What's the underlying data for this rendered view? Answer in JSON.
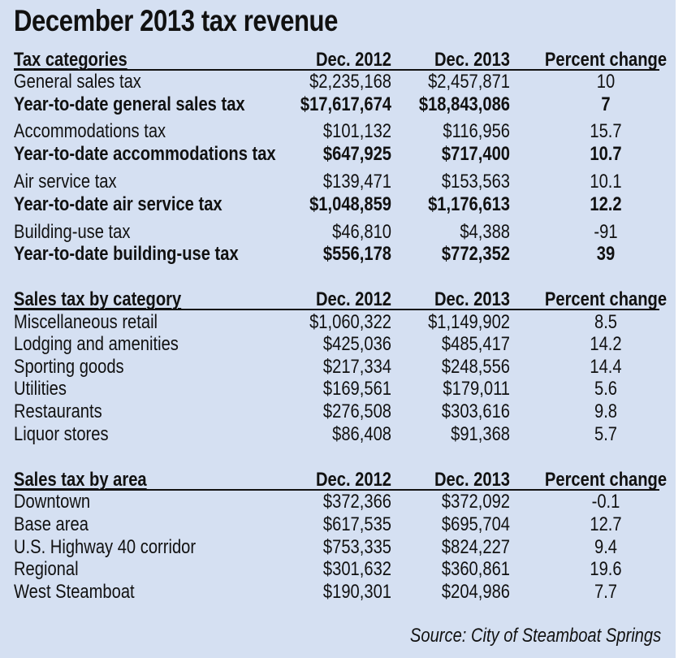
{
  "title": "December 2013 tax revenue",
  "sections": [
    {
      "header": [
        "Tax categories",
        "Dec. 2012",
        "Dec. 2013",
        "Percent change"
      ],
      "rows": [
        {
          "label": "General sales tax",
          "v2012": "$2,235,168",
          "v2013": "$2,457,871",
          "pct": "10",
          "bold": false
        },
        {
          "label": "Year-to-date general sales tax",
          "v2012": "$17,617,674",
          "v2013": "$18,843,086",
          "pct": "7",
          "bold": true
        },
        {
          "label": "Accommodations tax",
          "v2012": "$101,132",
          "v2013": "$116,956",
          "pct": "15.7",
          "bold": false
        },
        {
          "label": "Year-to-date accommodations tax",
          "v2012": "$647,925",
          "v2013": "$717,400",
          "pct": "10.7",
          "bold": true
        },
        {
          "label": "Air service tax",
          "v2012": "$139,471",
          "v2013": "$153,563",
          "pct": "10.1",
          "bold": false
        },
        {
          "label": "Year-to-date air service tax",
          "v2012": "$1,048,859",
          "v2013": "$1,176,613",
          "pct": "12.2",
          "bold": true
        },
        {
          "label": "Building-use tax",
          "v2012": "$46,810",
          "v2013": "$4,388",
          "pct": "-91",
          "bold": false
        },
        {
          "label": "Year-to-date building-use tax",
          "v2012": "$556,178",
          "v2013": "$772,352",
          "pct": "39",
          "bold": true
        }
      ]
    },
    {
      "header": [
        "Sales tax by category",
        "Dec. 2012",
        "Dec. 2013",
        "Percent change"
      ],
      "rows": [
        {
          "label": "Miscellaneous retail",
          "v2012": "$1,060,322",
          "v2013": "$1,149,902",
          "pct": "8.5",
          "bold": false
        },
        {
          "label": "Lodging and amenities",
          "v2012": "$425,036",
          "v2013": "$485,417",
          "pct": "14.2",
          "bold": false
        },
        {
          "label": "Sporting goods",
          "v2012": "$217,334",
          "v2013": "$248,556",
          "pct": "14.4",
          "bold": false
        },
        {
          "label": "Utilities",
          "v2012": "$169,561",
          "v2013": "$179,011",
          "pct": "5.6",
          "bold": false
        },
        {
          "label": "Restaurants",
          "v2012": "$276,508",
          "v2013": "$303,616",
          "pct": "9.8",
          "bold": false
        },
        {
          "label": "Liquor stores",
          "v2012": "$86,408",
          "v2013": "$91,368",
          "pct": "5.7",
          "bold": false
        }
      ]
    },
    {
      "header": [
        "Sales tax by area",
        "Dec. 2012",
        "Dec. 2013",
        "Percent change"
      ],
      "rows": [
        {
          "label": "Downtown",
          "v2012": "$372,366",
          "v2013": "$372,092",
          "pct": "-0.1",
          "bold": false
        },
        {
          "label": "Base area",
          "v2012": "$617,535",
          "v2013": "$695,704",
          "pct": "12.7",
          "bold": false
        },
        {
          "label": "U.S. Highway 40 corridor",
          "v2012": "$753,335",
          "v2013": "$824,227",
          "pct": "9.4",
          "bold": false
        },
        {
          "label": "Regional",
          "v2012": "$301,632",
          "v2013": "$360,861",
          "pct": "19.6",
          "bold": false
        },
        {
          "label": "West Steamboat",
          "v2012": "$190,301",
          "v2013": "$204,986",
          "pct": "7.7",
          "bold": false
        }
      ]
    }
  ],
  "source": "Source: City of Steamboat Springs"
}
